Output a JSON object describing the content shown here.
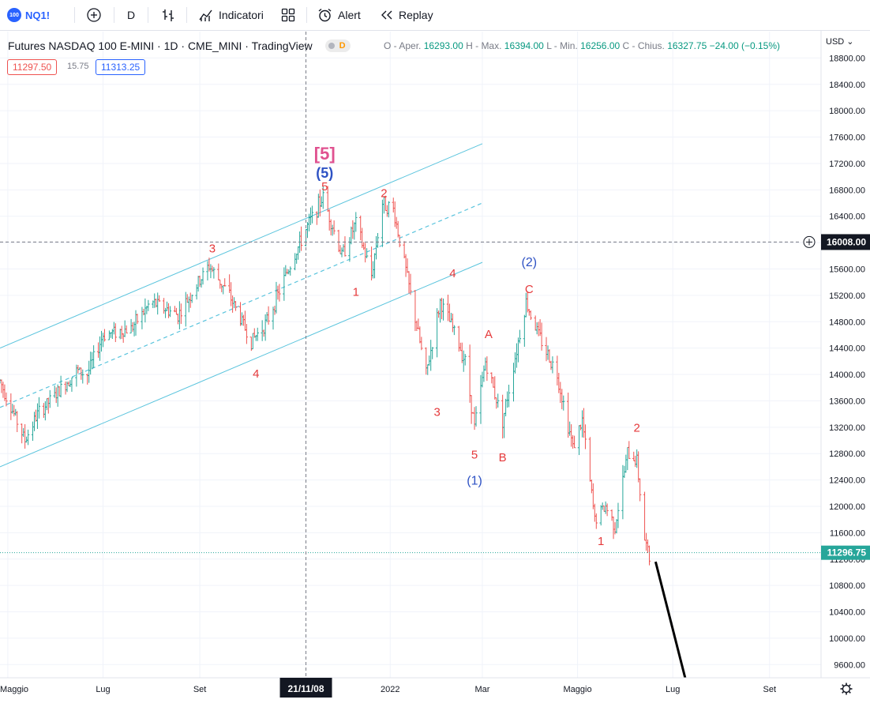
{
  "toolbar": {
    "symbol_badge": "100",
    "symbol": "NQ1!",
    "add_icon": "plus-circle-icon",
    "interval": "D",
    "bars_icon": "bar-style-icon",
    "indicators_icon": "indicators-icon",
    "indicators_label": "Indicatori",
    "layout_icon": "layout-grid-icon",
    "alert_icon": "alarm-clock-icon",
    "alert_label": "Alert",
    "replay_icon": "rewind-icon",
    "replay_label": "Replay"
  },
  "legend": {
    "title": "Futures NASDAQ 100 E-MINI · 1D · CME_MINI · TradingView",
    "badge": "D",
    "o_label": "O - Aper.",
    "o_value": "16293.00",
    "h_label": "H - Max.",
    "h_value": "16394.00",
    "l_label": "L - Min.",
    "l_value": "16256.00",
    "c_label": "C - Chius.",
    "c_value": "16327.75",
    "change": "−24.00 (−0.15%)"
  },
  "trade": {
    "sell_price": "11297.50",
    "spread": "15.75",
    "buy_price": "11313.25"
  },
  "currency": "USD",
  "chart_data": {
    "type": "bar",
    "symbol": "NQ1!",
    "interval": "1D",
    "y_axis": {
      "min": 9400,
      "max": 19200,
      "ticks": [
        9600,
        10000,
        10400,
        10800,
        11200,
        11600,
        12000,
        12400,
        12800,
        13200,
        13600,
        14000,
        14400,
        14800,
        15200,
        15600,
        16000,
        16400,
        16800,
        17200,
        17600,
        18000,
        18400,
        18800
      ]
    },
    "x_axis": {
      "start": "2021-04-26",
      "end": "2022-10-04",
      "ticks": [
        {
          "label": "Maggio",
          "date": "2021-05-01"
        },
        {
          "label": "Lug",
          "date": "2021-07-01"
        },
        {
          "label": "Set",
          "date": "2021-09-01"
        },
        {
          "label": "2022",
          "date": "2022-01-01"
        },
        {
          "label": "Mar",
          "date": "2022-03-01"
        },
        {
          "label": "Maggio",
          "date": "2022-05-01"
        },
        {
          "label": "Lug",
          "date": "2022-07-01"
        },
        {
          "label": "Set",
          "date": "2022-09-01"
        }
      ]
    },
    "price_path": [
      [
        "2021-04-26",
        13900
      ],
      [
        "2021-05-12",
        13000
      ],
      [
        "2021-05-20",
        13400
      ],
      [
        "2021-06-01",
        13700
      ],
      [
        "2021-06-14",
        14050
      ],
      [
        "2021-06-21",
        14000
      ],
      [
        "2021-07-01",
        14600
      ],
      [
        "2021-07-19",
        14700
      ],
      [
        "2021-08-01",
        15100
      ],
      [
        "2021-08-18",
        14900
      ],
      [
        "2021-09-07",
        15650
      ],
      [
        "2021-09-20",
        15200
      ],
      [
        "2021-10-04",
        14500
      ],
      [
        "2021-10-14",
        14800
      ],
      [
        "2021-10-26",
        15500
      ],
      [
        "2021-11-08",
        16200
      ],
      [
        "2021-11-19",
        16700
      ],
      [
        "2021-12-01",
        15800
      ],
      [
        "2021-12-10",
        16300
      ],
      [
        "2021-12-20",
        15500
      ],
      [
        "2021-12-27",
        16600
      ],
      [
        "2022-01-03",
        16500
      ],
      [
        "2022-01-10",
        15700
      ],
      [
        "2022-01-24",
        14000
      ],
      [
        "2022-02-02",
        15100
      ],
      [
        "2022-02-10",
        14700
      ],
      [
        "2022-02-18",
        14200
      ],
      [
        "2022-02-24",
        13200
      ],
      [
        "2022-03-03",
        14200
      ],
      [
        "2022-03-14",
        13300
      ],
      [
        "2022-03-29",
        15100
      ],
      [
        "2022-04-06",
        14600
      ],
      [
        "2022-04-18",
        14000
      ],
      [
        "2022-04-28",
        12900
      ],
      [
        "2022-05-04",
        13300
      ],
      [
        "2022-05-12",
        11800
      ],
      [
        "2022-05-19",
        12000
      ],
      [
        "2022-05-25",
        11700
      ],
      [
        "2022-06-02",
        12800
      ],
      [
        "2022-06-08",
        12700
      ],
      [
        "2022-06-13",
        11500
      ],
      [
        "2022-06-16",
        11200
      ]
    ],
    "last_value": 11296.75,
    "crosshair": {
      "date_label": "21/11/08",
      "price_label": "16008.00",
      "date": "2021-11-08",
      "price": 16008
    },
    "channel": {
      "start": [
        "2021-04-26",
        14400
      ],
      "end": [
        "2022-03-01",
        17500
      ],
      "offset": 1800
    },
    "projection": [
      [
        "2022-06-20",
        11160
      ],
      [
        "2022-07-10",
        9300
      ]
    ],
    "annotations": [
      {
        "text": "[5]",
        "date": "2021-11-20",
        "price": 17330,
        "color": "#e05290",
        "size": 22
      },
      {
        "text": "(5)",
        "date": "2021-11-20",
        "price": 17040,
        "color": "#2e52c4",
        "size": 18
      },
      {
        "text": "5",
        "date": "2021-11-20",
        "price": 16840,
        "color": "#e5393b",
        "size": 15
      },
      {
        "text": "3",
        "date": "2021-09-09",
        "price": 15900,
        "color": "#e5393b",
        "size": 15
      },
      {
        "text": "4",
        "date": "2021-10-07",
        "price": 14000,
        "color": "#e5393b",
        "size": 15
      },
      {
        "text": "2",
        "date": "2021-12-28",
        "price": 16740,
        "color": "#e5393b",
        "size": 15
      },
      {
        "text": "1",
        "date": "2021-12-10",
        "price": 15240,
        "color": "#e5393b",
        "size": 15
      },
      {
        "text": "4",
        "date": "2022-02-10",
        "price": 15520,
        "color": "#e5393b",
        "size": 15
      },
      {
        "text": "3",
        "date": "2022-01-31",
        "price": 13420,
        "color": "#e5393b",
        "size": 15
      },
      {
        "text": "A",
        "date": "2022-03-05",
        "price": 14600,
        "color": "#e5393b",
        "size": 15
      },
      {
        "text": "5",
        "date": "2022-02-24",
        "price": 12770,
        "color": "#e5393b",
        "size": 15
      },
      {
        "text": "B",
        "date": "2022-03-14",
        "price": 12730,
        "color": "#e5393b",
        "size": 15
      },
      {
        "text": "(1)",
        "date": "2022-02-24",
        "price": 12380,
        "color": "#2e52c4",
        "size": 16
      },
      {
        "text": "(2)",
        "date": "2022-03-31",
        "price": 15690,
        "color": "#2e52c4",
        "size": 16
      },
      {
        "text": "C",
        "date": "2022-03-31",
        "price": 15280,
        "color": "#e5393b",
        "size": 15
      },
      {
        "text": "2",
        "date": "2022-06-08",
        "price": 13180,
        "color": "#e5393b",
        "size": 15
      },
      {
        "text": "1",
        "date": "2022-05-16",
        "price": 11460,
        "color": "#e5393b",
        "size": 15
      }
    ]
  },
  "colors": {
    "up_bar": "#26a69a",
    "down_bar": "#ef5350",
    "channel": "#5ac4dd",
    "wave_red": "#e5393b",
    "wave_blue": "#2e52c4",
    "wave_pink": "#e05290",
    "last_price": "#26a69a"
  },
  "settings_icon": "gear-icon"
}
